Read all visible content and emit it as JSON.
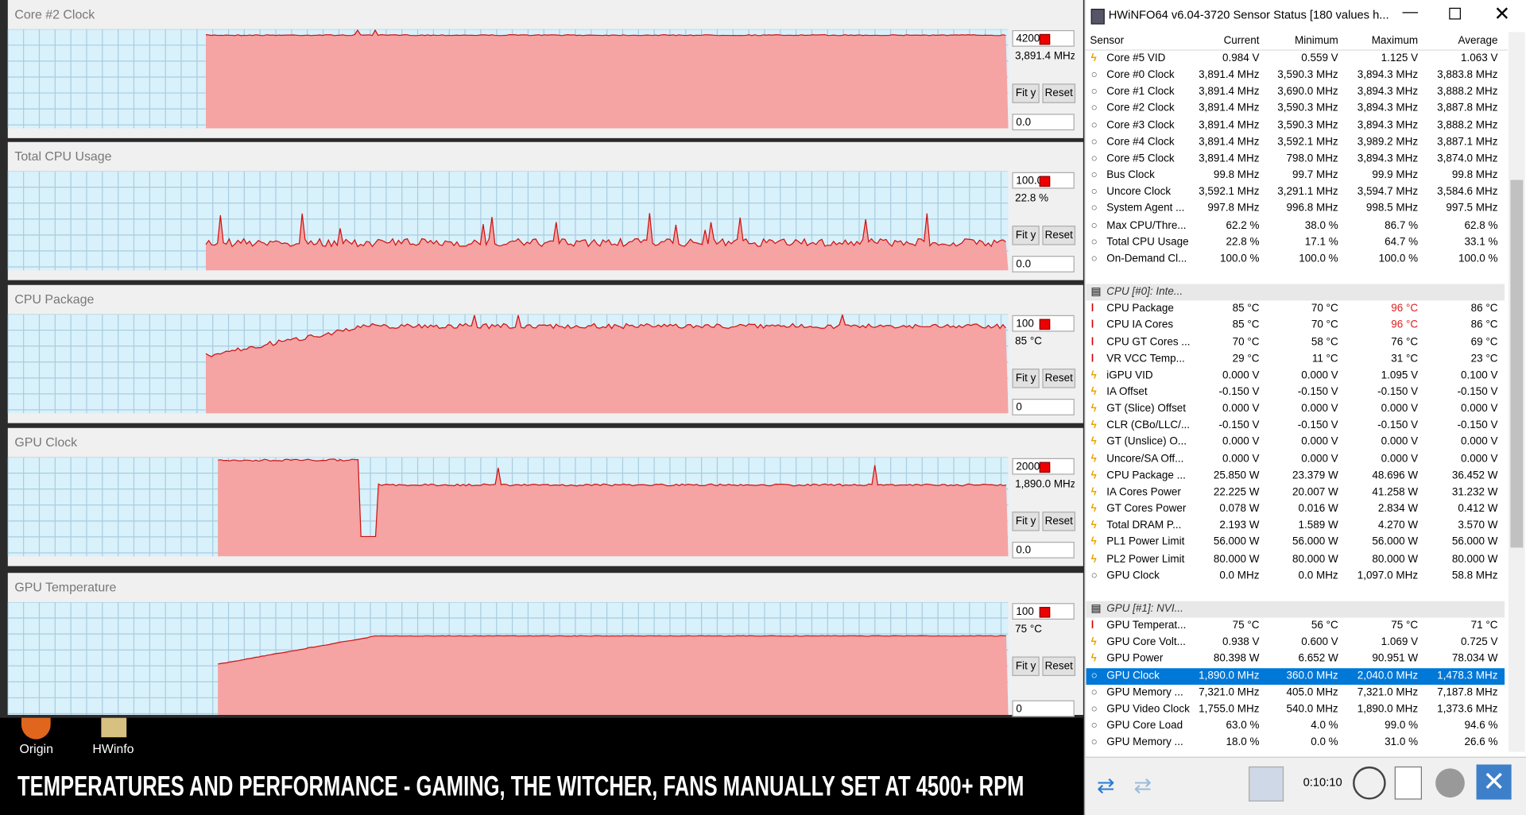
{
  "graphs": [
    {
      "title": "Core #2 Clock",
      "max": "4200",
      "current": "3,891.4 MHz",
      "min": "0.0"
    },
    {
      "title": "Total CPU Usage",
      "max": "100.0",
      "current": "22.8 %",
      "min": "0.0"
    },
    {
      "title": "CPU Package",
      "max": "100",
      "current": "85 °C",
      "min": "0"
    },
    {
      "title": "GPU Clock",
      "max": "2000.0",
      "current": "1,890.0 MHz",
      "min": "0.0"
    },
    {
      "title": "GPU Temperature",
      "max": "100",
      "current": "75 °C",
      "min": "0"
    }
  ],
  "buttons": {
    "fit": "Fit y",
    "reset": "Reset"
  },
  "desktop_icons": [
    "Origin",
    "HWinfo"
  ],
  "caption": "TEMPERATURES AND PERFORMANCE - GAMING, THE WITCHER, FANS MANUALLY SET AT 4500+ RPM",
  "window": {
    "title": "HWiNFO64 v6.04-3720 Sensor Status [180 values h...",
    "timer": "0:10:10",
    "columns": [
      "Sensor",
      "Current",
      "Minimum",
      "Maximum",
      "Average"
    ],
    "rows": [
      {
        "icon": "v",
        "cells": [
          "Core #5 VID",
          "0.984 V",
          "0.559 V",
          "1.125 V",
          "1.063 V"
        ]
      },
      {
        "icon": "c",
        "cells": [
          "Core #0 Clock",
          "3,891.4 MHz",
          "3,590.3 MHz",
          "3,894.3 MHz",
          "3,883.8 MHz"
        ]
      },
      {
        "icon": "c",
        "cells": [
          "Core #1 Clock",
          "3,891.4 MHz",
          "3,690.0 MHz",
          "3,894.3 MHz",
          "3,888.2 MHz"
        ]
      },
      {
        "icon": "c",
        "cells": [
          "Core #2 Clock",
          "3,891.4 MHz",
          "3,590.3 MHz",
          "3,894.3 MHz",
          "3,887.8 MHz"
        ]
      },
      {
        "icon": "c",
        "cells": [
          "Core #3 Clock",
          "3,891.4 MHz",
          "3,590.3 MHz",
          "3,894.3 MHz",
          "3,888.2 MHz"
        ]
      },
      {
        "icon": "c",
        "cells": [
          "Core #4 Clock",
          "3,891.4 MHz",
          "3,592.1 MHz",
          "3,989.2 MHz",
          "3,887.1 MHz"
        ]
      },
      {
        "icon": "c",
        "cells": [
          "Core #5 Clock",
          "3,891.4 MHz",
          "798.0 MHz",
          "3,894.3 MHz",
          "3,874.0 MHz"
        ]
      },
      {
        "icon": "c",
        "cells": [
          "Bus Clock",
          "99.8 MHz",
          "99.7 MHz",
          "99.9 MHz",
          "99.8 MHz"
        ]
      },
      {
        "icon": "c",
        "cells": [
          "Uncore Clock",
          "3,592.1 MHz",
          "3,291.1 MHz",
          "3,594.7 MHz",
          "3,584.6 MHz"
        ]
      },
      {
        "icon": "c",
        "cells": [
          "System Agent ...",
          "997.8 MHz",
          "996.8 MHz",
          "998.5 MHz",
          "997.5 MHz"
        ]
      },
      {
        "icon": "c",
        "cells": [
          "Max CPU/Thre...",
          "62.2 %",
          "38.0 %",
          "86.7 %",
          "62.8 %"
        ]
      },
      {
        "icon": "c",
        "cells": [
          "Total CPU Usage",
          "22.8 %",
          "17.1 %",
          "64.7 %",
          "33.1 %"
        ]
      },
      {
        "icon": "c",
        "cells": [
          "On-Demand Cl...",
          "100.0 %",
          "100.0 %",
          "100.0 %",
          "100.0 %"
        ]
      },
      {
        "icon": "none",
        "cells": []
      },
      {
        "icon": "group",
        "cells": [
          "CPU [#0]: Inte..."
        ]
      },
      {
        "icon": "t",
        "red": [
          3
        ],
        "cells": [
          "CPU Package",
          "85 °C",
          "70 °C",
          "96 °C",
          "86 °C"
        ]
      },
      {
        "icon": "t",
        "red": [
          3
        ],
        "cells": [
          "CPU IA Cores",
          "85 °C",
          "70 °C",
          "96 °C",
          "86 °C"
        ]
      },
      {
        "icon": "t",
        "cells": [
          "CPU GT Cores ...",
          "70 °C",
          "58 °C",
          "76 °C",
          "69 °C"
        ]
      },
      {
        "icon": "t",
        "cells": [
          "VR VCC Temp...",
          "29 °C",
          "11 °C",
          "31 °C",
          "23 °C"
        ]
      },
      {
        "icon": "v",
        "cells": [
          "iGPU VID",
          "0.000 V",
          "0.000 V",
          "1.095 V",
          "0.100 V"
        ]
      },
      {
        "icon": "v",
        "cells": [
          "IA Offset",
          "-0.150 V",
          "-0.150 V",
          "-0.150 V",
          "-0.150 V"
        ]
      },
      {
        "icon": "v",
        "cells": [
          "GT (Slice) Offset",
          "0.000 V",
          "0.000 V",
          "0.000 V",
          "0.000 V"
        ]
      },
      {
        "icon": "v",
        "cells": [
          "CLR (CBo/LLC/...",
          "-0.150 V",
          "-0.150 V",
          "-0.150 V",
          "-0.150 V"
        ]
      },
      {
        "icon": "v",
        "cells": [
          "GT (Unslice) O...",
          "0.000 V",
          "0.000 V",
          "0.000 V",
          "0.000 V"
        ]
      },
      {
        "icon": "v",
        "cells": [
          "Uncore/SA Off...",
          "0.000 V",
          "0.000 V",
          "0.000 V",
          "0.000 V"
        ]
      },
      {
        "icon": "v",
        "cells": [
          "CPU Package ...",
          "25.850 W",
          "23.379 W",
          "48.696 W",
          "36.452 W"
        ]
      },
      {
        "icon": "v",
        "cells": [
          "IA Cores Power",
          "22.225 W",
          "20.007 W",
          "41.258 W",
          "31.232 W"
        ]
      },
      {
        "icon": "v",
        "cells": [
          "GT Cores Power",
          "0.078 W",
          "0.016 W",
          "2.834 W",
          "0.412 W"
        ]
      },
      {
        "icon": "v",
        "cells": [
          "Total DRAM P...",
          "2.193 W",
          "1.589 W",
          "4.270 W",
          "3.570 W"
        ]
      },
      {
        "icon": "v",
        "cells": [
          "PL1 Power Limit",
          "56.000 W",
          "56.000 W",
          "56.000 W",
          "56.000 W"
        ]
      },
      {
        "icon": "v",
        "cells": [
          "PL2 Power Limit",
          "80.000 W",
          "80.000 W",
          "80.000 W",
          "80.000 W"
        ]
      },
      {
        "icon": "c",
        "cells": [
          "GPU Clock",
          "0.0 MHz",
          "0.0 MHz",
          "1,097.0 MHz",
          "58.8 MHz"
        ]
      },
      {
        "icon": "none",
        "cells": []
      },
      {
        "icon": "group",
        "cells": [
          "GPU [#1]: NVI..."
        ]
      },
      {
        "icon": "t",
        "cells": [
          "GPU Temperat...",
          "75 °C",
          "56 °C",
          "75 °C",
          "71 °C"
        ]
      },
      {
        "icon": "v",
        "cells": [
          "GPU Core Volt...",
          "0.938 V",
          "0.600 V",
          "1.069 V",
          "0.725 V"
        ]
      },
      {
        "icon": "v",
        "cells": [
          "GPU Power",
          "80.398 W",
          "6.652 W",
          "90.951 W",
          "78.034 W"
        ]
      },
      {
        "icon": "c",
        "selected": true,
        "cells": [
          "GPU Clock",
          "1,890.0 MHz",
          "360.0 MHz",
          "2,040.0 MHz",
          "1,478.3 MHz"
        ]
      },
      {
        "icon": "c",
        "cells": [
          "GPU Memory ...",
          "7,321.0 MHz",
          "405.0 MHz",
          "7,321.0 MHz",
          "7,187.8 MHz"
        ]
      },
      {
        "icon": "c",
        "cells": [
          "GPU Video Clock",
          "1,755.0 MHz",
          "540.0 MHz",
          "1,890.0 MHz",
          "1,373.6 MHz"
        ]
      },
      {
        "icon": "c",
        "cells": [
          "GPU Core Load",
          "63.0 %",
          "4.0 %",
          "99.0 %",
          "94.6 %"
        ]
      },
      {
        "icon": "c",
        "cells": [
          "GPU Memory ...",
          "18.0 %",
          "0.0 %",
          "31.0 %",
          "26.6 %"
        ]
      }
    ]
  }
}
